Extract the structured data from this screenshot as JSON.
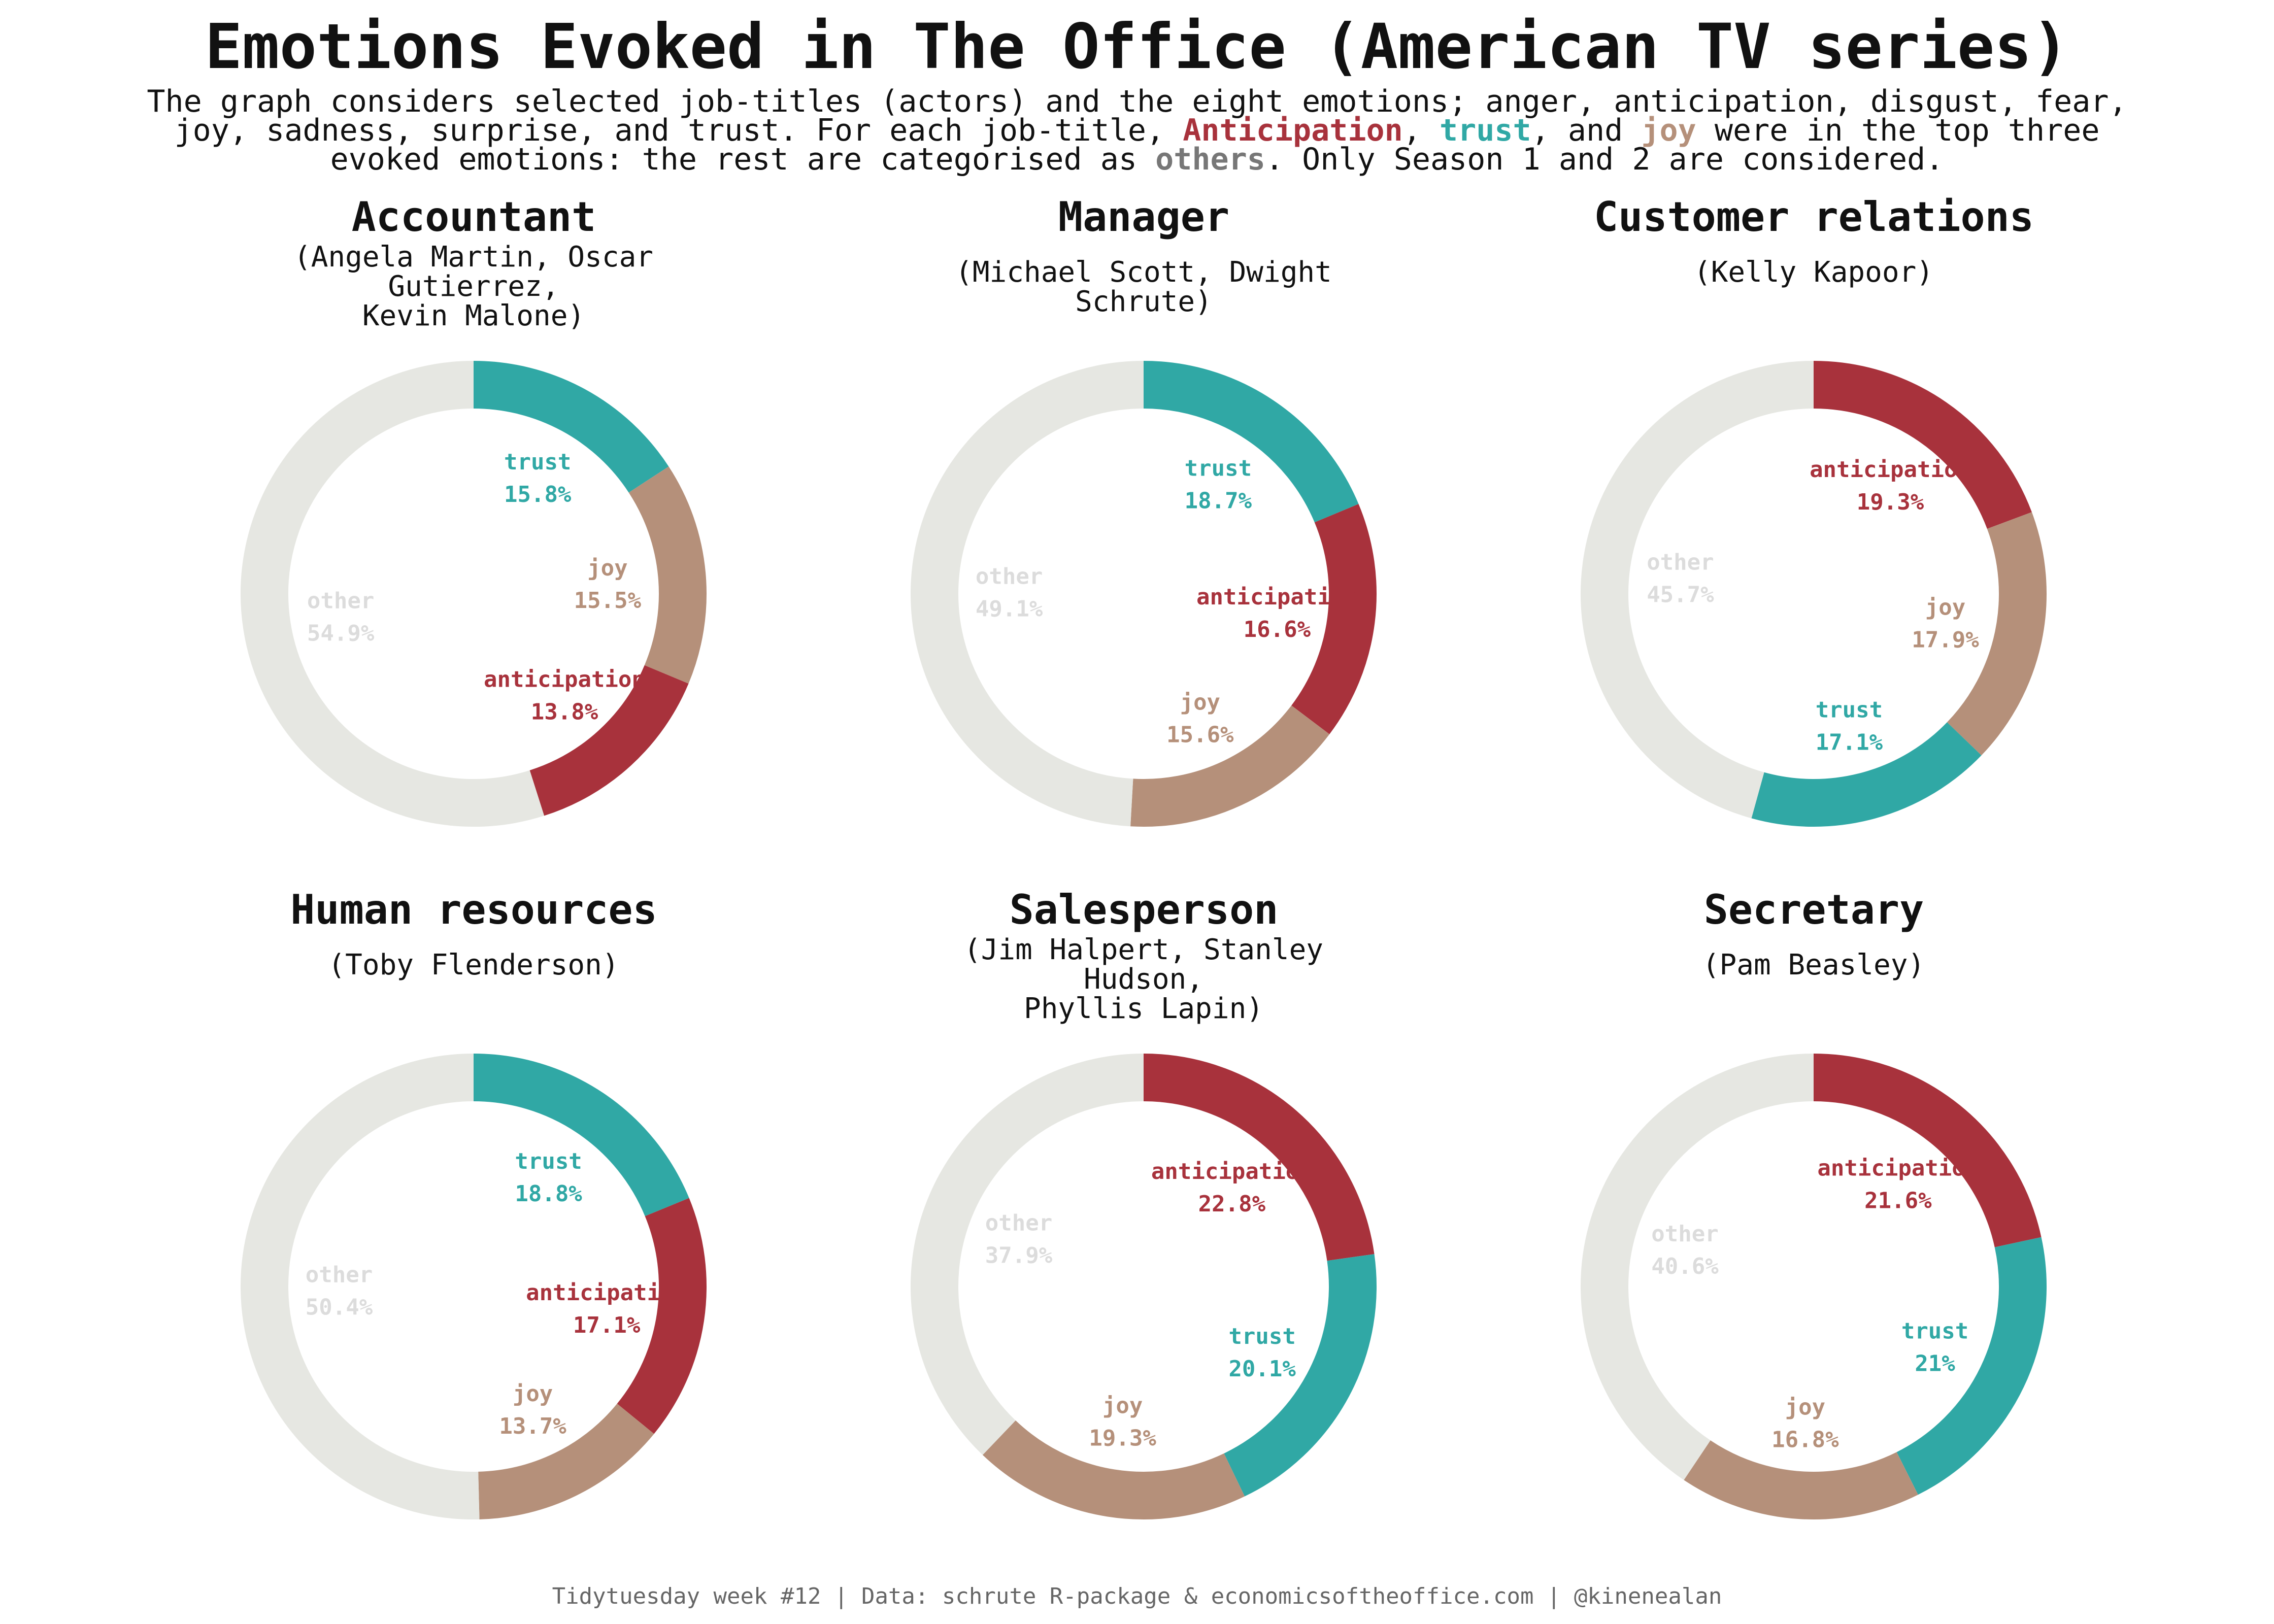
{
  "title": "Emotions Evoked in The Office (American TV series)",
  "subtitle": {
    "line1": "The graph considers selected job-titles (actors) and the eight emotions; anger, anticipation, disgust, fear,",
    "line2_pre": "joy, sadness, surprise, and trust. For each job-title, ",
    "line2_anticipation": "Anticipation",
    "line2_sep1": ", ",
    "line2_trust": "trust",
    "line2_sep2": ", and ",
    "line2_joy": "joy",
    "line2_post": " were in the top three",
    "line3_pre": "evoked emotions: the rest are categorised as ",
    "line3_others": "others",
    "line3_post": ". Only Season 1 and 2 are considered."
  },
  "caption": "Tidytuesday week #12 | Data: schrute R-package & economicsoftheoffice.com | @kinenealan",
  "colors": {
    "anticipation": "#a8323c",
    "trust": "#30a8a5",
    "joy": "#b5907a",
    "other": "#e6e7e2",
    "other_label": "#dcdcdc",
    "others_word": "#777777"
  },
  "chart_data": [
    {
      "type": "pie",
      "title": "Accountant",
      "subtitle": [
        "(Angela Martin, Oscar Gutierrez,",
        "Kevin Malone)"
      ],
      "slices": [
        {
          "label": "trust",
          "value": 15.8,
          "display": "15.8%",
          "color_key": "trust"
        },
        {
          "label": "joy",
          "value": 15.5,
          "display": "15.5%",
          "color_key": "joy"
        },
        {
          "label": "anticipation",
          "value": 13.8,
          "display": "13.8%",
          "color_key": "anticipation"
        },
        {
          "label": "other",
          "value": 54.9,
          "display": "54.9%",
          "color_key": "other"
        }
      ]
    },
    {
      "type": "pie",
      "title": "Manager",
      "subtitle": [
        "(Michael Scott, Dwight Schrute)"
      ],
      "slices": [
        {
          "label": "trust",
          "value": 18.7,
          "display": "18.7%",
          "color_key": "trust"
        },
        {
          "label": "anticipation",
          "value": 16.6,
          "display": "16.6%",
          "color_key": "anticipation"
        },
        {
          "label": "joy",
          "value": 15.6,
          "display": "15.6%",
          "color_key": "joy"
        },
        {
          "label": "other",
          "value": 49.1,
          "display": "49.1%",
          "color_key": "other"
        }
      ]
    },
    {
      "type": "pie",
      "title": "Customer relations",
      "subtitle": [
        "(Kelly Kapoor)"
      ],
      "slices": [
        {
          "label": "anticipation",
          "value": 19.3,
          "display": "19.3%",
          "color_key": "anticipation"
        },
        {
          "label": "joy",
          "value": 17.9,
          "display": "17.9%",
          "color_key": "joy"
        },
        {
          "label": "trust",
          "value": 17.1,
          "display": "17.1%",
          "color_key": "trust"
        },
        {
          "label": "other",
          "value": 45.7,
          "display": "45.7%",
          "color_key": "other"
        }
      ]
    },
    {
      "type": "pie",
      "title": "Human resources",
      "subtitle": [
        "(Toby Flenderson)"
      ],
      "slices": [
        {
          "label": "trust",
          "value": 18.8,
          "display": "18.8%",
          "color_key": "trust"
        },
        {
          "label": "anticipation",
          "value": 17.1,
          "display": "17.1%",
          "color_key": "anticipation"
        },
        {
          "label": "joy",
          "value": 13.7,
          "display": "13.7%",
          "color_key": "joy"
        },
        {
          "label": "other",
          "value": 50.4,
          "display": "50.4%",
          "color_key": "other"
        }
      ]
    },
    {
      "type": "pie",
      "title": "Salesperson",
      "subtitle": [
        "(Jim Halpert, Stanley Hudson,",
        "Phyllis Lapin)"
      ],
      "slices": [
        {
          "label": "anticipation",
          "value": 22.8,
          "display": "22.8%",
          "color_key": "anticipation"
        },
        {
          "label": "trust",
          "value": 20.1,
          "display": "20.1%",
          "color_key": "trust"
        },
        {
          "label": "joy",
          "value": 19.3,
          "display": "19.3%",
          "color_key": "joy"
        },
        {
          "label": "other",
          "value": 37.9,
          "display": "37.9%",
          "color_key": "other"
        }
      ]
    },
    {
      "type": "pie",
      "title": "Secretary",
      "subtitle": [
        "(Pam Beasley)"
      ],
      "slices": [
        {
          "label": "anticipation",
          "value": 21.6,
          "display": "21.6%",
          "color_key": "anticipation"
        },
        {
          "label": "trust",
          "value": 21,
          "display": "21%",
          "color_key": "trust"
        },
        {
          "label": "joy",
          "value": 16.8,
          "display": "16.8%",
          "color_key": "joy"
        },
        {
          "label": "other",
          "value": 40.6,
          "display": "40.6%",
          "color_key": "other"
        }
      ]
    }
  ]
}
